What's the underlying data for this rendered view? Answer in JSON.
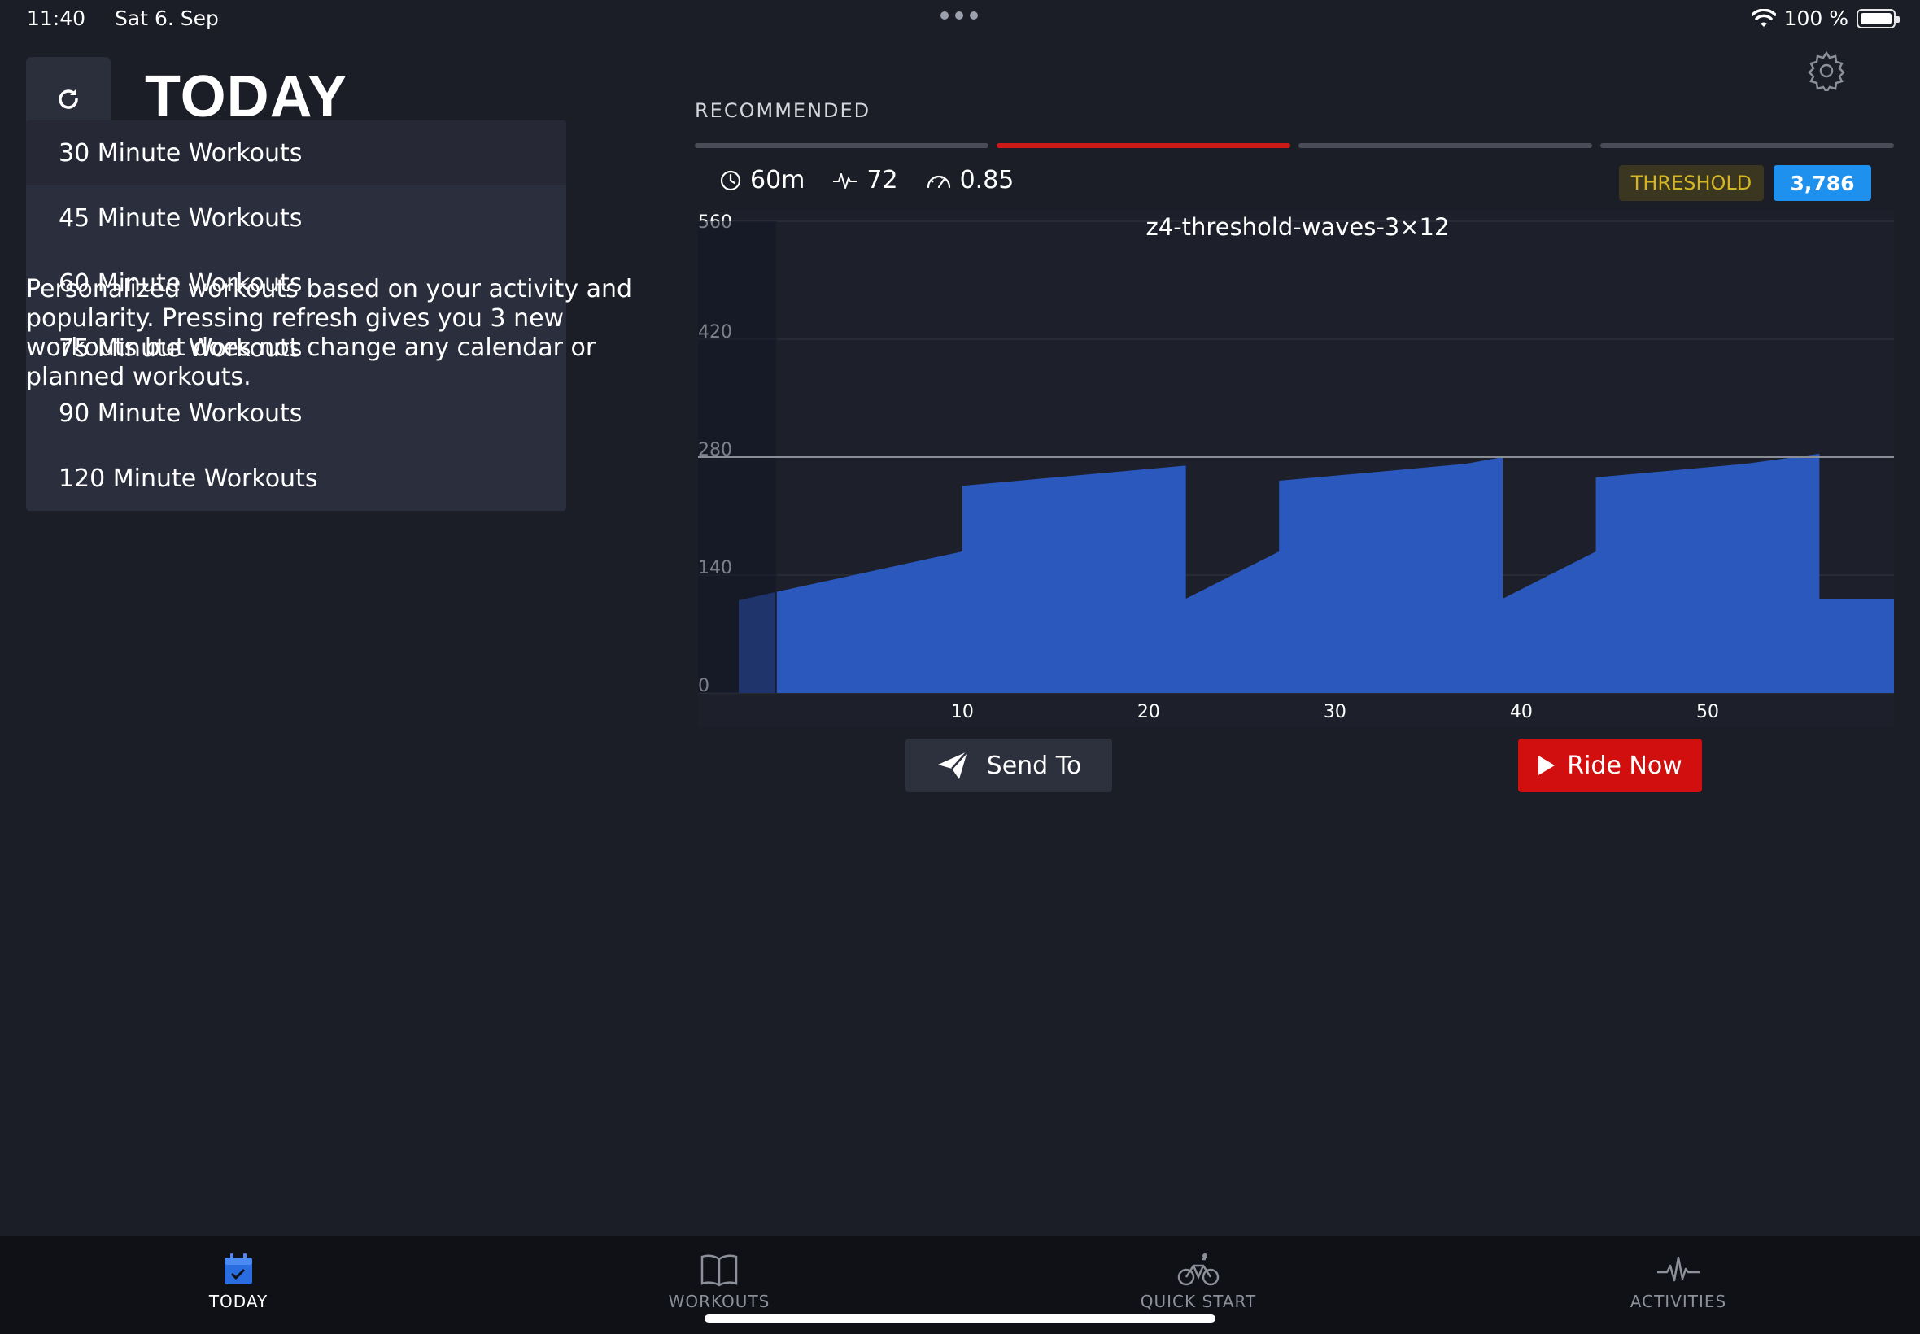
{
  "status_bar": {
    "time": "11:40",
    "date": "Sat 6. Sep",
    "battery": "100 %",
    "battery_level": 1.0
  },
  "header": {
    "title": "TODAY",
    "refresh_icon": "refresh-icon",
    "settings_icon": "gear-icon"
  },
  "dropdown": {
    "items": [
      {
        "label": "30 Minute Workouts"
      },
      {
        "label": "45 Minute Workouts"
      },
      {
        "label": "60 Minute Workouts"
      },
      {
        "label": "75 Minute Workouts"
      },
      {
        "label": "90 Minute Workouts"
      },
      {
        "label": "120 Minute Workouts"
      }
    ]
  },
  "info_text": "Personalized workouts based on your activity and popularity. Pressing refresh gives you 3 new workouts but does not change any calendar or planned workouts.",
  "recommended": {
    "label": "RECOMMENDED",
    "pages": 4,
    "active_page": 1,
    "stats": {
      "duration": "60m",
      "intensity": "72",
      "factor": "0.85"
    },
    "badge_category": "THRESHOLD",
    "badge_score": "3,786",
    "colors": {
      "accent_red": "#d20f0f",
      "score_blue": "#1e90ee",
      "threshold_gold": "#d4b523",
      "bar_blue": "#2a58bd"
    }
  },
  "chart_data": {
    "type": "area",
    "title": "z4-threshold-waves-3×12",
    "xlabel": "",
    "ylabel": "",
    "xlim": [
      -2,
      60
    ],
    "ylim": [
      0,
      560
    ],
    "yticks": [
      0,
      140,
      280,
      420,
      560
    ],
    "xticks": [
      10,
      20,
      30,
      40,
      50
    ],
    "ftp_line": 280,
    "grid": true,
    "series": [
      {
        "points": [
          [
            -2,
            110
          ],
          [
            0,
            120
          ],
          [
            10,
            168
          ],
          [
            10,
            246
          ],
          [
            12,
            250
          ],
          [
            14,
            254
          ],
          [
            16,
            258
          ],
          [
            18,
            262
          ],
          [
            20,
            266
          ],
          [
            22,
            270
          ],
          [
            22,
            112
          ],
          [
            27,
            168
          ],
          [
            27,
            252
          ],
          [
            29,
            256
          ],
          [
            31,
            260
          ],
          [
            33,
            264
          ],
          [
            35,
            268
          ],
          [
            37,
            272
          ],
          [
            39,
            280
          ],
          [
            39,
            112
          ],
          [
            44,
            168
          ],
          [
            44,
            256
          ],
          [
            46,
            260
          ],
          [
            48,
            264
          ],
          [
            50,
            268
          ],
          [
            52,
            272
          ],
          [
            54,
            278
          ],
          [
            56,
            284
          ],
          [
            56,
            112
          ],
          [
            60,
            112
          ]
        ]
      }
    ]
  },
  "actions": {
    "send_label": "Send To",
    "ride_label": "Ride Now"
  },
  "tab_bar": {
    "tabs": [
      {
        "label": "TODAY",
        "icon": "calendar-check-icon",
        "active": true
      },
      {
        "label": "WORKOUTS",
        "icon": "book-icon",
        "active": false
      },
      {
        "label": "QUICK START",
        "icon": "bicycle-icon",
        "active": false
      },
      {
        "label": "ACTIVITIES",
        "icon": "activity-pulse-icon",
        "active": false
      }
    ]
  }
}
